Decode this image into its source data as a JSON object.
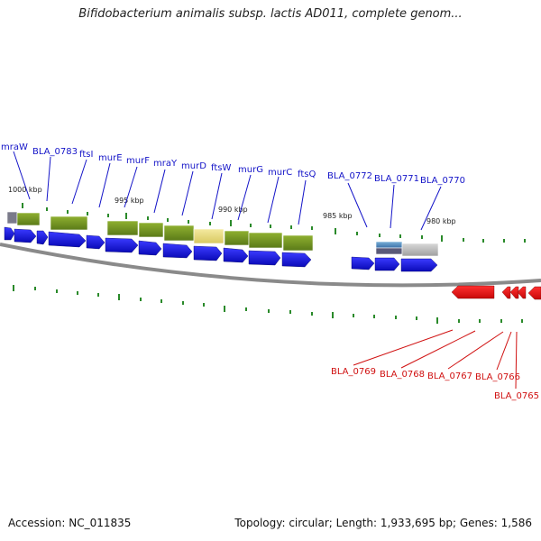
{
  "title": "Bifidobacterium animalis subsp. lactis AD011, complete genom...",
  "footer": {
    "accession_label": "Accession:",
    "accession": "NC_011835",
    "topology": "Topology: circular",
    "length": "Length: 1,933,695 bp",
    "genes": "Genes: 1,586"
  },
  "colors": {
    "forward_gene": "#1a1ae6",
    "reverse_gene": "#ee1111",
    "cds_feature": "#7a9a2a",
    "cds_highlight": "#e8dc80",
    "tick": "#2a8a2a",
    "backbone": "#8a8a8a",
    "forward_label": "#1414c8",
    "reverse_label": "#d01010"
  },
  "kbp_markers": [
    "1000 kbp",
    "995 kbp",
    "990 kbp",
    "985 kbp",
    "980 kbp"
  ],
  "forward_gene_labels": [
    "mraW",
    "BLA_0783",
    "ftsI",
    "murE",
    "murF",
    "mraY",
    "murD",
    "ftsW",
    "murG",
    "murC",
    "ftsQ",
    "BLA_0772",
    "BLA_0771",
    "BLA_0770"
  ],
  "reverse_gene_labels": [
    "BLA_0769",
    "BLA_0768",
    "BLA_0767",
    "BLA_0766",
    "BLA_0765"
  ]
}
